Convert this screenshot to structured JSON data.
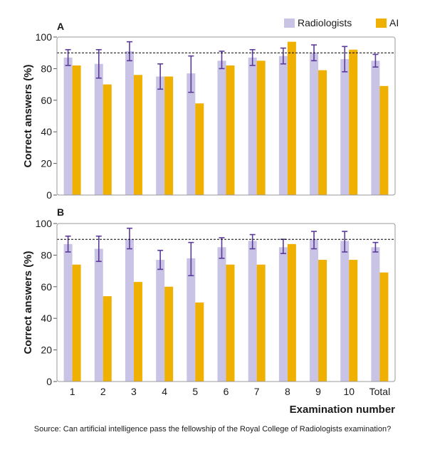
{
  "legend": [
    {
      "label": "Radiologists",
      "color": "#c9c3e6"
    },
    {
      "label": "AI",
      "color": "#f0b000"
    }
  ],
  "ylabel": "Correct answers (%)",
  "xlabel": "Examination number",
  "source": "Source: Can artificial intelligence pass the fellowship of the Royal College of Radiologists examination?",
  "colors": {
    "radiologists": "#c9c3e6",
    "ai": "#f0b000",
    "error_bar": "#5b3a9a",
    "frame": "#999999",
    "reference_line": "#000000"
  },
  "chart_data": [
    {
      "panel": "A",
      "type": "bar",
      "categories": [
        "1",
        "2",
        "3",
        "4",
        "5",
        "6",
        "7",
        "8",
        "9",
        "10",
        "Total"
      ],
      "series": [
        {
          "name": "Radiologists",
          "values": [
            87,
            83,
            91,
            75,
            77,
            85,
            87,
            88,
            90,
            86,
            85
          ],
          "error_low": [
            82,
            74,
            85,
            67,
            65,
            80,
            82,
            83,
            85,
            78,
            81
          ],
          "error_high": [
            92,
            92,
            97,
            83,
            88,
            91,
            92,
            93,
            95,
            94,
            89
          ]
        },
        {
          "name": "AI",
          "values": [
            82,
            70,
            76,
            75,
            58,
            82,
            85,
            97,
            79,
            92,
            69
          ]
        }
      ],
      "ylim": [
        0,
        100
      ],
      "yticks": [
        0,
        20,
        40,
        60,
        80,
        100
      ],
      "reference_line": 90,
      "grid": false
    },
    {
      "panel": "B",
      "type": "bar",
      "categories": [
        "1",
        "2",
        "3",
        "4",
        "5",
        "6",
        "7",
        "8",
        "9",
        "10",
        "Total"
      ],
      "series": [
        {
          "name": "Radiologists",
          "values": [
            87,
            84,
            90,
            77,
            78,
            85,
            89,
            85,
            90,
            89,
            85
          ],
          "error_low": [
            82,
            76,
            84,
            71,
            67,
            78,
            84,
            81,
            84,
            82,
            82
          ],
          "error_high": [
            92,
            92,
            97,
            83,
            88,
            91,
            93,
            90,
            95,
            95,
            88
          ]
        },
        {
          "name": "AI",
          "values": [
            74,
            54,
            63,
            60,
            50,
            74,
            74,
            87,
            77,
            77,
            69
          ]
        }
      ],
      "ylim": [
        0,
        100
      ],
      "yticks": [
        0,
        20,
        40,
        60,
        80,
        100
      ],
      "reference_line": 90,
      "grid": false
    }
  ]
}
